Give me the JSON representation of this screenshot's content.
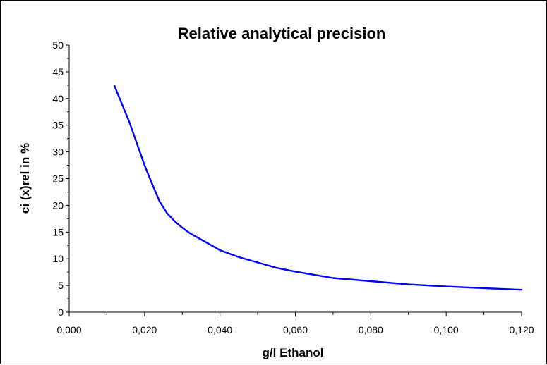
{
  "chart_data": {
    "type": "line",
    "title": "Relative analytical precision",
    "xlabel": "g/l Ethanol",
    "ylabel": "ci (x)rel in %",
    "xlim": [
      0.0,
      0.12
    ],
    "ylim": [
      0,
      50
    ],
    "x_ticks": [
      "0,000",
      "0,020",
      "0,040",
      "0,060",
      "0,080",
      "0,100",
      "0,120"
    ],
    "y_ticks": [
      "0",
      "5",
      "10",
      "15",
      "20",
      "25",
      "30",
      "35",
      "40",
      "45",
      "50"
    ],
    "grid": false,
    "legend": "none",
    "series": [
      {
        "color": "#0000ff",
        "x": [
          0.012,
          0.016,
          0.02,
          0.022,
          0.024,
          0.026,
          0.028,
          0.03,
          0.032,
          0.035,
          0.04,
          0.045,
          0.05,
          0.055,
          0.06,
          0.065,
          0.07,
          0.08,
          0.09,
          0.1,
          0.11,
          0.12
        ],
        "y": [
          42.4,
          35.5,
          27.5,
          24.0,
          20.7,
          18.5,
          17.0,
          15.8,
          14.8,
          13.6,
          11.6,
          10.3,
          9.3,
          8.3,
          7.6,
          7.0,
          6.4,
          5.8,
          5.2,
          4.8,
          4.5,
          4.2
        ]
      }
    ]
  }
}
